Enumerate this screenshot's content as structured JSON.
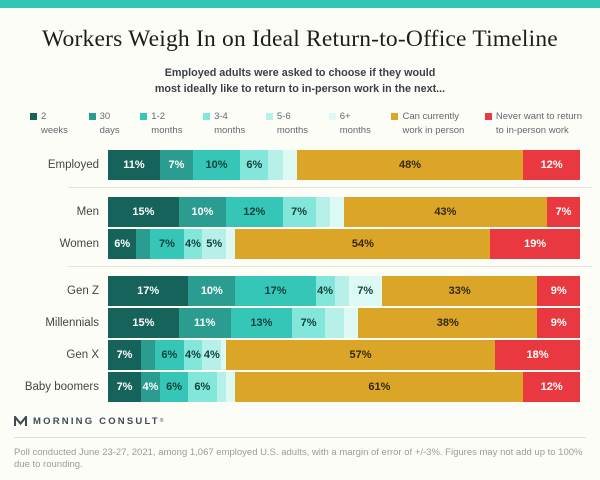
{
  "page": {
    "accent_color": "#2fc6b8",
    "background_color": "#fdfdf8",
    "title": "Workers Weigh In on Ideal Return-to-Office Timeline",
    "subtitle_line1": "Employed adults were asked to choose if they would",
    "subtitle_line2": "most ideally like to return to in-person work in the next..."
  },
  "legend": {
    "items": [
      {
        "line1": "2",
        "line2": "weeks",
        "color": "#15635a"
      },
      {
        "line1": "30",
        "line2": "days",
        "color": "#2a9d90"
      },
      {
        "line1": "1-2",
        "line2": "months",
        "color": "#36c6b8"
      },
      {
        "line1": "3-4",
        "line2": "months",
        "color": "#83e6da"
      },
      {
        "line1": "5-6",
        "line2": "months",
        "color": "#b6f0e9"
      },
      {
        "line1": "6+",
        "line2": "months",
        "color": "#dcf9f4"
      },
      {
        "line1": "Can currently",
        "line2": "work in person",
        "color": "#dba628"
      },
      {
        "line1": "Never want to return",
        "line2": "to in-person work",
        "color": "#e9383f"
      }
    ]
  },
  "chart_data": {
    "type": "bar",
    "orientation": "horizontal",
    "stacked": true,
    "unit": "%",
    "xlim": [
      0,
      100
    ],
    "title": "Workers Weigh In on Ideal Return-to-Office Timeline",
    "subtitle": "Employed adults were asked to choose if they would most ideally like to return to in-person work in the next...",
    "legend_position": "top",
    "categories": [
      "Employed",
      "Men",
      "Women",
      "Gen Z",
      "Millennials",
      "Gen X",
      "Baby boomers"
    ],
    "series": [
      {
        "name": "2 weeks",
        "color": "#15635a",
        "label_color": "#ffffff",
        "values": [
          11,
          15,
          6,
          17,
          15,
          7,
          7
        ]
      },
      {
        "name": "30 days",
        "color": "#2a9d90",
        "label_color": "#ffffff",
        "values": [
          7,
          10,
          3,
          10,
          11,
          3,
          4
        ]
      },
      {
        "name": "1-2 months",
        "color": "#36c6b8",
        "label_color": "#12423c",
        "values": [
          10,
          12,
          7,
          17,
          13,
          6,
          6
        ]
      },
      {
        "name": "3-4 months",
        "color": "#83e6da",
        "label_color": "#12423c",
        "values": [
          6,
          7,
          4,
          4,
          7,
          4,
          6
        ]
      },
      {
        "name": "5-6 months",
        "color": "#b6f0e9",
        "label_color": "#12423c",
        "values": [
          3,
          3,
          5,
          3,
          4,
          4,
          2
        ]
      },
      {
        "name": "6+ months",
        "color": "#dcf9f4",
        "label_color": "#12423c",
        "values": [
          3,
          3,
          2,
          7,
          3,
          1,
          2
        ]
      },
      {
        "name": "Can currently work in person",
        "color": "#dba628",
        "label_color": "#35280a",
        "values": [
          48,
          43,
          54,
          33,
          38,
          57,
          61
        ]
      },
      {
        "name": "Never want to return to in-person work",
        "color": "#e9383f",
        "label_color": "#ffffff",
        "values": [
          12,
          7,
          19,
          9,
          9,
          18,
          12
        ]
      }
    ],
    "rows": [
      {
        "label": "Employed",
        "group": 0,
        "values": [
          11,
          7,
          10,
          6,
          3,
          3,
          48,
          12
        ],
        "shown": [
          "11%",
          "7%",
          "10%",
          "6%",
          "",
          "",
          "48%",
          "12%"
        ]
      },
      {
        "label": "Men",
        "group": 1,
        "values": [
          15,
          10,
          12,
          7,
          3,
          3,
          43,
          7
        ],
        "shown": [
          "15%",
          "10%",
          "12%",
          "7%",
          "",
          "",
          "43%",
          "7%"
        ]
      },
      {
        "label": "Women",
        "group": 1,
        "values": [
          6,
          3,
          7,
          4,
          5,
          2,
          54,
          19
        ],
        "shown": [
          "6%",
          "",
          "7%",
          "4%",
          "5%",
          "",
          "54%",
          "19%"
        ]
      },
      {
        "label": "Gen Z",
        "group": 2,
        "values": [
          17,
          10,
          17,
          4,
          3,
          7,
          33,
          9
        ],
        "shown": [
          "17%",
          "10%",
          "17%",
          "4%",
          "",
          "7%",
          "33%",
          "9%"
        ]
      },
      {
        "label": "Millennials",
        "group": 2,
        "values": [
          15,
          11,
          13,
          7,
          4,
          3,
          38,
          9
        ],
        "shown": [
          "15%",
          "11%",
          "13%",
          "7%",
          "",
          "",
          "38%",
          "9%"
        ]
      },
      {
        "label": "Gen X",
        "group": 2,
        "values": [
          7,
          3,
          6,
          4,
          4,
          1,
          57,
          18
        ],
        "shown": [
          "7%",
          "",
          "6%",
          "4%",
          "4%",
          "",
          "57%",
          "18%"
        ]
      },
      {
        "label": "Baby boomers",
        "group": 2,
        "values": [
          7,
          4,
          6,
          6,
          2,
          2,
          61,
          12
        ],
        "shown": [
          "7%",
          "4%",
          "6%",
          "6%",
          "",
          "",
          "61%",
          "12%"
        ]
      }
    ]
  },
  "footer": {
    "logo_text": "MORNING CONSULT",
    "logo_mark": "®",
    "footnote": "Poll conducted June 23-27, 2021, among 1,067 employed U.S. adults, with a margin of error of +/-3%. Figures may not add up to 100% due to rounding."
  }
}
